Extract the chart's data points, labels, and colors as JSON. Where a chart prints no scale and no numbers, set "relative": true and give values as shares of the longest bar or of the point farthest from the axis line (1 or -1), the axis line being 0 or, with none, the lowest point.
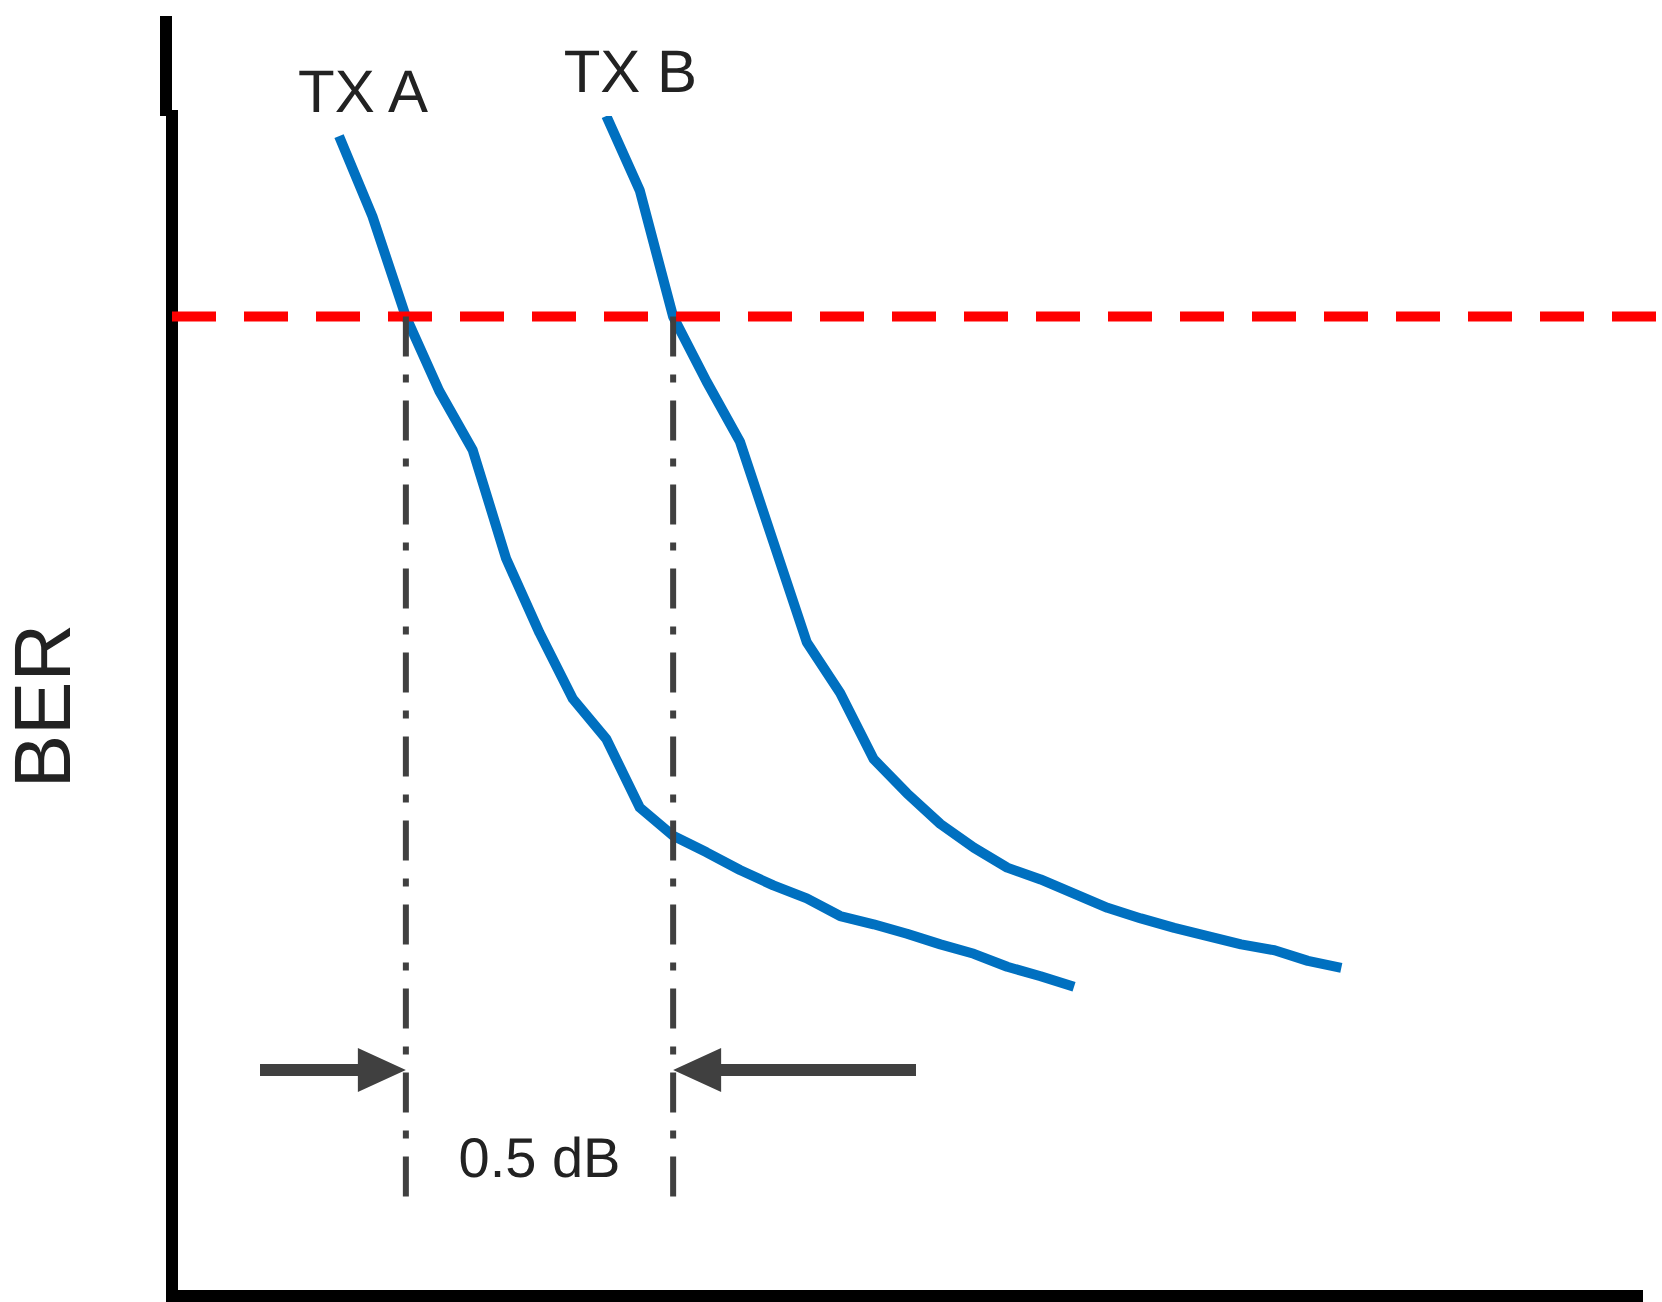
{
  "chart_data": {
    "type": "line",
    "ylabel": "BER",
    "relative": true,
    "tick_labels": false,
    "grid": false,
    "legend": false,
    "marker": "none",
    "line_style": "solid",
    "categories": [
      null,
      null,
      null,
      null,
      null,
      null,
      null,
      null,
      null,
      null,
      null,
      null,
      null,
      null,
      null,
      null,
      null,
      null,
      null,
      null,
      null,
      null,
      null,
      null,
      null,
      null,
      null,
      null,
      null,
      null,
      null,
      null,
      null,
      null,
      null,
      null,
      null,
      null,
      null,
      null,
      null,
      null,
      null,
      null,
      null
    ],
    "series": [
      {
        "name": "TX A",
        "color": "#0070c0",
        "values": [
          null,
          null,
          null,
          null,
          null,
          0.983,
          0.915,
          0.83,
          0.767,
          0.717,
          0.625,
          0.562,
          0.506,
          0.472,
          0.414,
          0.39,
          0.376,
          0.361,
          0.348,
          0.337,
          0.322,
          0.315,
          0.307,
          0.298,
          0.29,
          0.279,
          0.271,
          0.262,
          null,
          null,
          null,
          null,
          null,
          null,
          null,
          null,
          null,
          null,
          null,
          null,
          null,
          null,
          null,
          null,
          null
        ]
      },
      {
        "name": "TX B",
        "color": "#0070c0",
        "values": [
          null,
          null,
          null,
          null,
          null,
          null,
          null,
          null,
          null,
          null,
          null,
          null,
          null,
          1.0,
          0.937,
          0.83,
          0.775,
          0.724,
          0.639,
          0.554,
          0.511,
          0.455,
          0.426,
          0.4,
          0.38,
          0.363,
          0.353,
          0.341,
          0.329,
          0.32,
          0.312,
          0.305,
          0.298,
          0.293,
          0.284,
          0.278,
          null,
          null,
          null,
          null,
          null,
          null,
          null,
          null,
          null
        ]
      }
    ],
    "ref_lines": [
      {
        "axis": "y",
        "value": 0.83,
        "color": "#ff0000",
        "line_style": "dashed"
      }
    ],
    "annotations": [
      "0.5 dB"
    ]
  }
}
